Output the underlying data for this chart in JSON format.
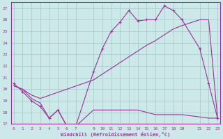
{
  "xlabel": "Windchill (Refroidissement éolien,°C)",
  "background_color": "#cce8e8",
  "grid_color": "#aacccc",
  "line_color": "#993399",
  "line1_x": [
    0,
    1,
    2,
    3,
    4,
    5,
    6,
    7,
    9,
    10,
    11,
    12,
    13,
    14,
    15,
    16,
    17,
    18,
    19,
    21,
    22,
    23
  ],
  "line1_y": [
    20.5,
    19.8,
    19.0,
    18.5,
    17.5,
    18.2,
    16.8,
    16.8,
    21.5,
    23.5,
    25.0,
    25.8,
    26.8,
    25.9,
    26.0,
    26.0,
    27.2,
    26.8,
    26.0,
    23.5,
    20.5,
    17.5
  ],
  "line2_x": [
    0,
    1,
    2,
    3,
    9,
    10,
    11,
    12,
    13,
    14,
    15,
    16,
    17,
    18,
    19,
    21,
    22,
    23
  ],
  "line2_y": [
    20.3,
    20.0,
    19.5,
    19.2,
    20.8,
    21.3,
    21.8,
    22.3,
    22.8,
    23.3,
    23.8,
    24.2,
    24.7,
    25.2,
    25.5,
    26.0,
    26.0,
    17.5
  ],
  "line3_x": [
    0,
    1,
    2,
    3,
    4,
    5,
    6,
    7,
    9,
    10,
    11,
    12,
    13,
    14,
    15,
    16,
    17,
    18,
    19,
    21,
    22,
    23
  ],
  "line3_y": [
    20.3,
    20.0,
    19.2,
    18.8,
    17.5,
    18.2,
    16.8,
    16.8,
    18.2,
    18.2,
    18.2,
    18.2,
    18.2,
    18.2,
    18.0,
    17.8,
    17.8,
    17.8,
    17.8,
    17.6,
    17.5,
    17.5
  ],
  "ylim": [
    17,
    27.5
  ],
  "xlim": [
    -0.3,
    23.3
  ],
  "yticks": [
    17,
    18,
    19,
    20,
    21,
    22,
    23,
    24,
    25,
    26,
    27
  ],
  "xticks": [
    0,
    1,
    2,
    3,
    4,
    5,
    6,
    7,
    9,
    10,
    11,
    12,
    13,
    14,
    15,
    16,
    17,
    18,
    19,
    21,
    22,
    23
  ]
}
